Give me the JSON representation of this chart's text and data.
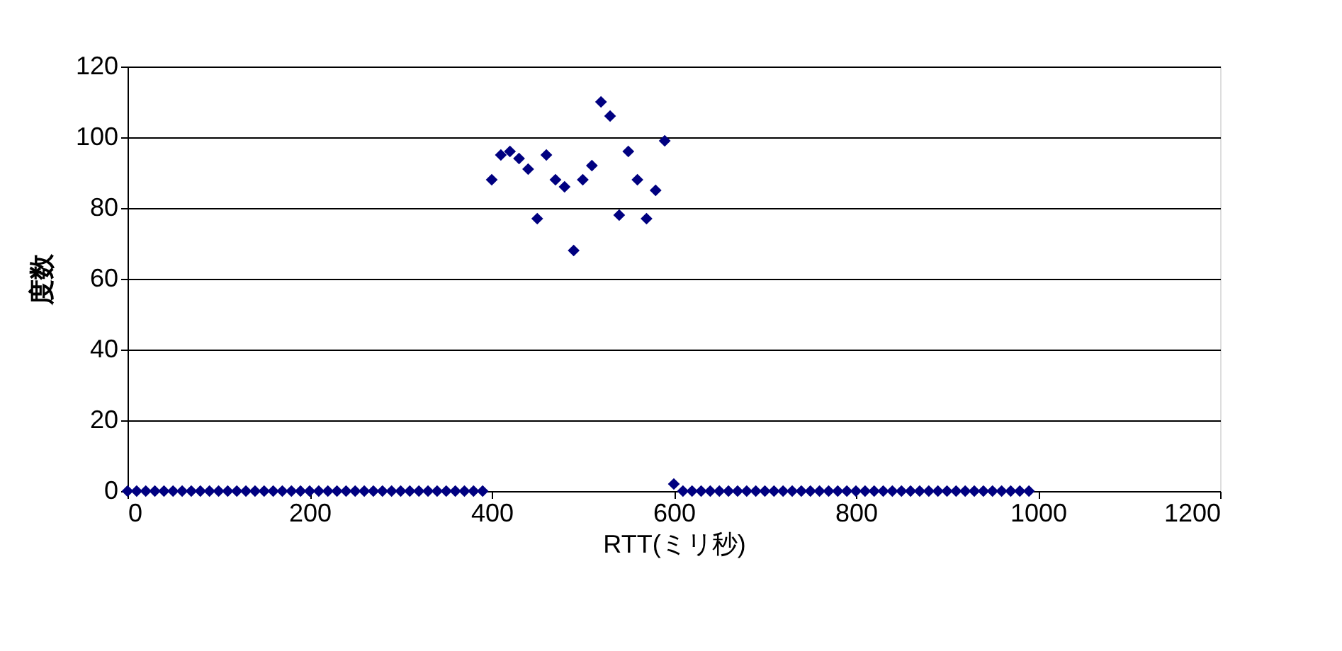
{
  "chart_data": {
    "type": "scatter",
    "xlabel": "RTT(ミリ秒)",
    "ylabel": "度数",
    "x": [
      0,
      10,
      20,
      30,
      40,
      50,
      60,
      70,
      80,
      90,
      100,
      110,
      120,
      130,
      140,
      150,
      160,
      170,
      180,
      190,
      200,
      210,
      220,
      230,
      240,
      250,
      260,
      270,
      280,
      290,
      300,
      310,
      320,
      330,
      340,
      350,
      360,
      370,
      380,
      390,
      400,
      410,
      420,
      430,
      440,
      450,
      460,
      470,
      480,
      490,
      500,
      510,
      520,
      530,
      540,
      550,
      560,
      570,
      580,
      590,
      600,
      610,
      620,
      630,
      640,
      650,
      660,
      670,
      680,
      690,
      700,
      710,
      720,
      730,
      740,
      750,
      760,
      770,
      780,
      790,
      800,
      810,
      820,
      830,
      840,
      850,
      860,
      870,
      880,
      890,
      900,
      910,
      920,
      930,
      940,
      950,
      960,
      970,
      980,
      990
    ],
    "series": [
      {
        "color": "#000080",
        "values": [
          0,
          0,
          0,
          0,
          0,
          0,
          0,
          0,
          0,
          0,
          0,
          0,
          0,
          0,
          0,
          0,
          0,
          0,
          0,
          0,
          0,
          0,
          0,
          0,
          0,
          0,
          0,
          0,
          0,
          0,
          0,
          0,
          0,
          0,
          0,
          0,
          0,
          0,
          0,
          0,
          88,
          95,
          96,
          94,
          91,
          77,
          95,
          88,
          86,
          68,
          88,
          92,
          110,
          106,
          78,
          96,
          88,
          77,
          85,
          99,
          2,
          0,
          0,
          0,
          0,
          0,
          0,
          0,
          0,
          0,
          0,
          0,
          0,
          0,
          0,
          0,
          0,
          0,
          0,
          0,
          0,
          0,
          0,
          0,
          0,
          0,
          0,
          0,
          0,
          0,
          0,
          0,
          0,
          0,
          0,
          0,
          0,
          0,
          0,
          0
        ]
      }
    ],
    "xlim": [
      0,
      1200
    ],
    "xticks": [
      0,
      200,
      400,
      600,
      800,
      1000,
      1200
    ],
    "ylim": [
      0,
      120
    ],
    "yticks": [
      0,
      20,
      40,
      60,
      80,
      100,
      120
    ],
    "grid": "y",
    "marker": "diamond"
  }
}
